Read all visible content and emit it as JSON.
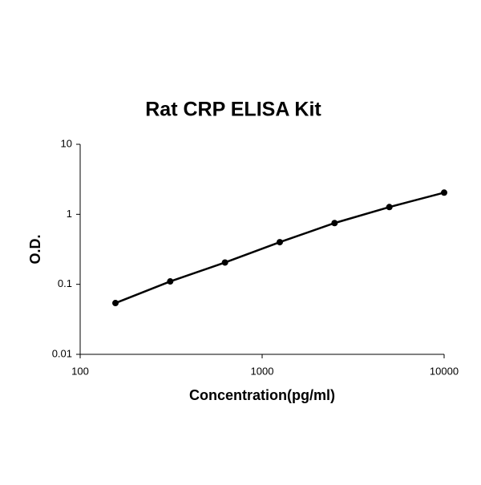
{
  "chart_data": {
    "type": "line",
    "title": "Rat CRP ELISA Kit",
    "x_label": "Concentration(pg/ml)",
    "y_label": "O.D.",
    "x": [
      156.25,
      312.5,
      625,
      1250,
      2500,
      5000,
      10000
    ],
    "series": [
      {
        "color": "#000000",
        "values": [
          0.054,
          0.11,
          0.205,
          0.4,
          0.75,
          1.27,
          2.04
        ]
      }
    ],
    "xscale": "log",
    "yscale": "log",
    "xlim": [
      100,
      10000
    ],
    "xticks": [
      100,
      1000,
      10000
    ],
    "ylim": [
      0.01,
      10
    ],
    "yticks": [
      0.01,
      0.1,
      1,
      10
    ],
    "grid": false
  }
}
